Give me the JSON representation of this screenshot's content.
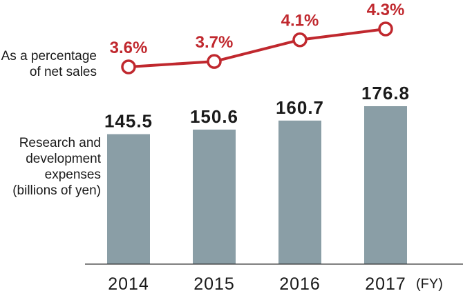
{
  "chart_data": {
    "type": "bar",
    "categories": [
      "2014",
      "2015",
      "2016",
      "2017"
    ],
    "x_unit": "(FY)",
    "series": [
      {
        "type": "bar",
        "label_lines": [
          "Research and",
          "development",
          "expenses",
          "(billions of yen)"
        ],
        "values": [
          145.5,
          150.6,
          160.7,
          176.8
        ],
        "value_labels": [
          "145.5",
          "150.6",
          "160.7",
          "176.8"
        ],
        "color": "#8a9ea6",
        "ylim": [
          0,
          176.8
        ]
      },
      {
        "type": "line",
        "label_lines": [
          "As a percentage",
          "of net sales"
        ],
        "values": [
          3.6,
          3.7,
          4.1,
          4.3
        ],
        "value_labels": [
          "3.6%",
          "3.7%",
          "4.1%",
          "4.3%"
        ],
        "color": "#c0282e",
        "ylim": [
          3.6,
          4.3
        ]
      }
    ],
    "grid": false,
    "legend": "left"
  }
}
